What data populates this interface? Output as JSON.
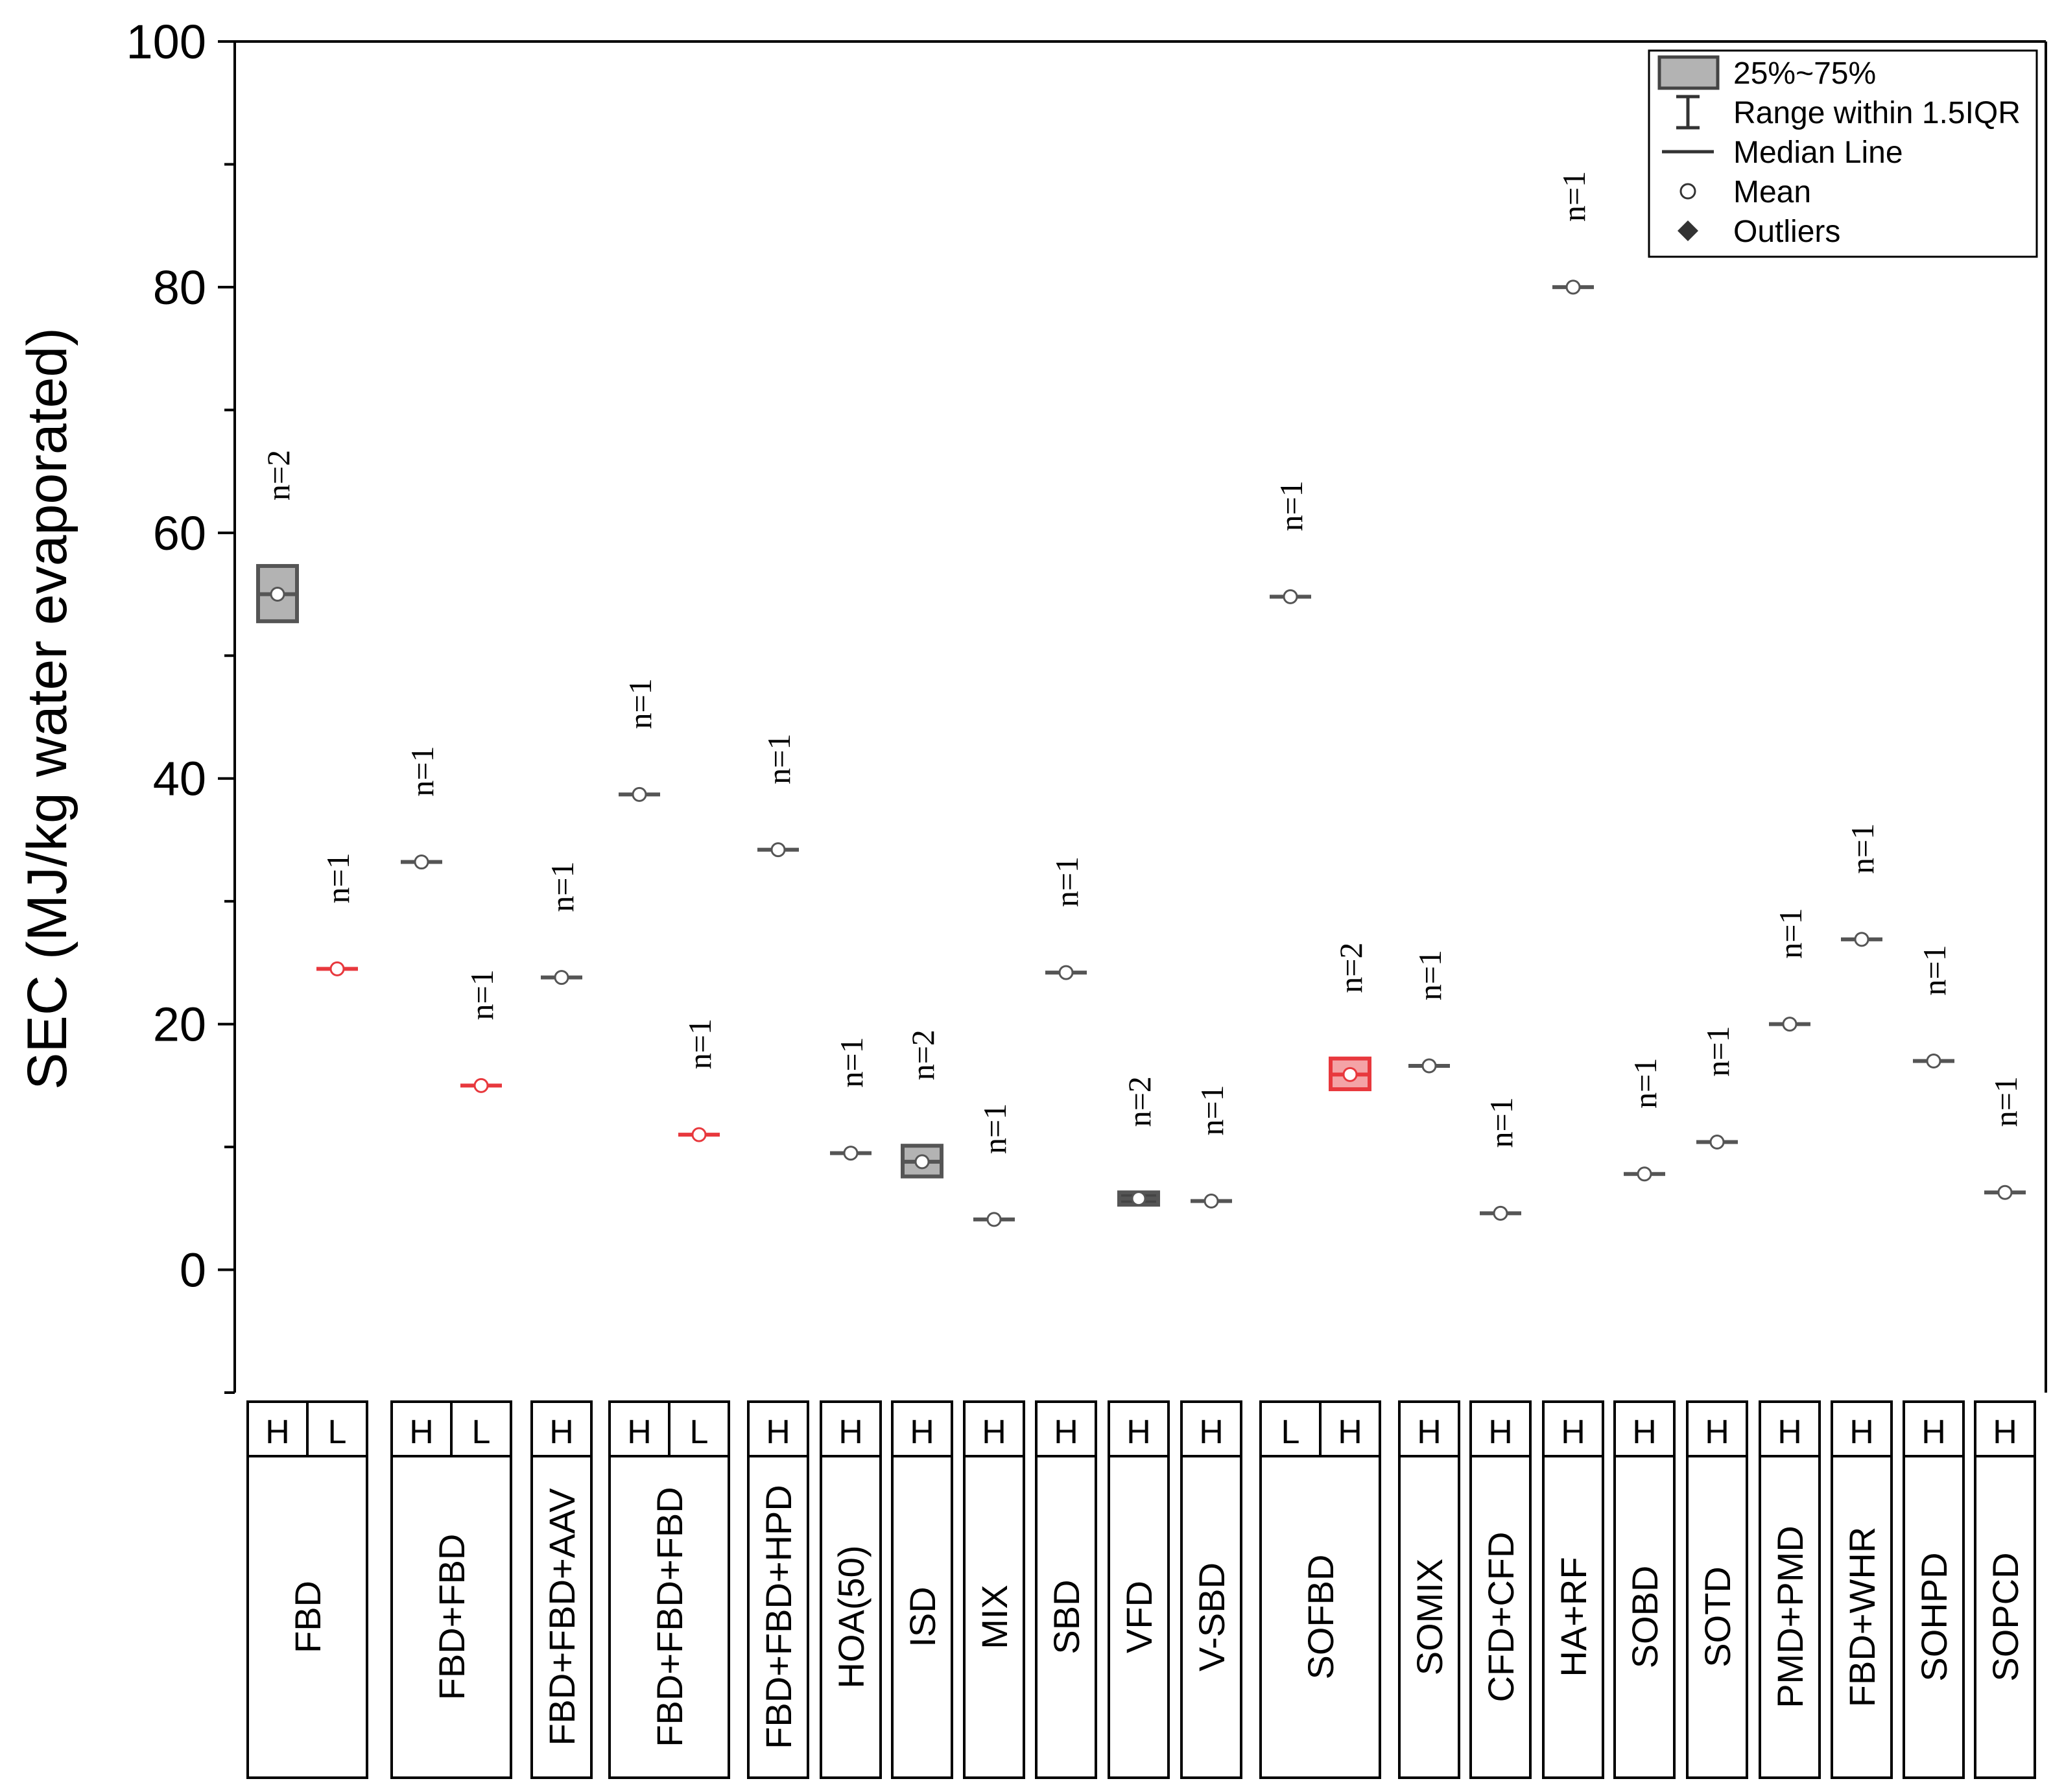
{
  "chart_data": {
    "type": "box",
    "ylabel": "SEC (MJ/kg water evaporated)",
    "ylim": [
      -10,
      100
    ],
    "yticks": [
      0,
      20,
      40,
      60,
      80,
      100
    ],
    "colors": {
      "H": "#555555",
      "L": "#e8383d",
      "H_fill": "#b3b3b3",
      "L_fill": "#f4a3a6"
    },
    "legend": {
      "position": "top-right",
      "items": [
        {
          "symbol": "box",
          "label": "25%~75%"
        },
        {
          "symbol": "whisker",
          "label": "Range within 1.5IQR"
        },
        {
          "symbol": "line",
          "label": "Median Line"
        },
        {
          "symbol": "circle",
          "label": "Mean"
        },
        {
          "symbol": "diamond",
          "label": "Outliers"
        }
      ]
    },
    "groups": [
      {
        "name": "FBD",
        "series": [
          {
            "level": "H",
            "n_label": "n=2",
            "median": 55,
            "mean": 55,
            "q1": 52.8,
            "q3": 57.3
          },
          {
            "level": "L",
            "n_label": "n=1",
            "median": 24.5,
            "mean": 24.5,
            "q1": 24.5,
            "q3": 24.5
          }
        ]
      },
      {
        "name": "FBD+FBD",
        "series": [
          {
            "level": "H",
            "n_label": "n=1",
            "median": 33.2,
            "mean": 33.2,
            "q1": 33.2,
            "q3": 33.2
          },
          {
            "level": "L",
            "n_label": "n=1",
            "median": 15,
            "mean": 15,
            "q1": 15,
            "q3": 15
          }
        ]
      },
      {
        "name": "FBD+FBD+AAV",
        "series": [
          {
            "level": "H",
            "n_label": "n=1",
            "median": 23.8,
            "mean": 23.8,
            "q1": 23.8,
            "q3": 23.8
          }
        ]
      },
      {
        "name": "FBD+FBD+FBD",
        "series": [
          {
            "level": "H",
            "n_label": "n=1",
            "median": 38.7,
            "mean": 38.7,
            "q1": 38.7,
            "q3": 38.7
          },
          {
            "level": "L",
            "n_label": "n=1",
            "median": 11,
            "mean": 11,
            "q1": 11,
            "q3": 11
          }
        ]
      },
      {
        "name": "FBD+FBD+HPD",
        "series": [
          {
            "level": "H",
            "n_label": "n=1",
            "median": 34.2,
            "mean": 34.2,
            "q1": 34.2,
            "q3": 34.2
          }
        ]
      },
      {
        "name": "HOA(50)",
        "series": [
          {
            "level": "H",
            "n_label": "n=1",
            "median": 9.5,
            "mean": 9.5,
            "q1": 9.5,
            "q3": 9.5
          }
        ]
      },
      {
        "name": "ISD",
        "series": [
          {
            "level": "H",
            "n_label": "n=2",
            "median": 8.8,
            "mean": 8.8,
            "q1": 7.6,
            "q3": 10.1
          }
        ]
      },
      {
        "name": "MIX",
        "series": [
          {
            "level": "H",
            "n_label": "n=1",
            "median": 4.1,
            "mean": 4.1,
            "q1": 4.1,
            "q3": 4.1
          }
        ]
      },
      {
        "name": "SBD",
        "series": [
          {
            "level": "H",
            "n_label": "n=1",
            "median": 24.2,
            "mean": 24.2,
            "q1": 24.2,
            "q3": 24.2
          }
        ]
      },
      {
        "name": "VFD",
        "series": [
          {
            "level": "H",
            "n_label": "n=2",
            "median": 5.8,
            "mean": 5.8,
            "q1": 5.3,
            "q3": 6.3
          }
        ]
      },
      {
        "name": "V-SBD",
        "series": [
          {
            "level": "H",
            "n_label": "n=1",
            "median": 5.6,
            "mean": 5.6,
            "q1": 5.6,
            "q3": 5.6
          }
        ]
      },
      {
        "name": "SOFBD",
        "series": [
          {
            "level": "L",
            "n_label": "n=1",
            "median": 54.8,
            "mean": 54.8,
            "q1": 54.8,
            "q3": 54.8,
            "color": "H"
          },
          {
            "level": "H",
            "n_label": "n=2",
            "median": 15.9,
            "mean": 15.9,
            "q1": 14.7,
            "q3": 17.2,
            "color": "L"
          }
        ]
      },
      {
        "name": "SOMIX",
        "series": [
          {
            "level": "H",
            "n_label": "n=1",
            "median": 16.6,
            "mean": 16.6,
            "q1": 16.6,
            "q3": 16.6
          }
        ]
      },
      {
        "name": "CFD+CFD",
        "series": [
          {
            "level": "H",
            "n_label": "n=1",
            "median": 4.6,
            "mean": 4.6,
            "q1": 4.6,
            "q3": 4.6
          }
        ]
      },
      {
        "name": "HA+RF",
        "series": [
          {
            "level": "H",
            "n_label": "n=1",
            "median": 80,
            "mean": 80,
            "q1": 80,
            "q3": 80
          }
        ]
      },
      {
        "name": "SOBD",
        "series": [
          {
            "level": "H",
            "n_label": "n=1",
            "median": 7.8,
            "mean": 7.8,
            "q1": 7.8,
            "q3": 7.8
          }
        ]
      },
      {
        "name": "SOTD",
        "series": [
          {
            "level": "H",
            "n_label": "n=1",
            "median": 10.4,
            "mean": 10.4,
            "q1": 10.4,
            "q3": 10.4
          }
        ]
      },
      {
        "name": "PMD+PMD",
        "series": [
          {
            "level": "H",
            "n_label": "n=1",
            "median": 20,
            "mean": 20,
            "q1": 20,
            "q3": 20
          }
        ]
      },
      {
        "name": "FBD+WHR",
        "series": [
          {
            "level": "H",
            "n_label": "n=1",
            "median": 26.9,
            "mean": 26.9,
            "q1": 26.9,
            "q3": 26.9
          }
        ]
      },
      {
        "name": "SOHPD",
        "series": [
          {
            "level": "H",
            "n_label": "n=1",
            "median": 17,
            "mean": 17,
            "q1": 17,
            "q3": 17
          }
        ]
      },
      {
        "name": "SOPCD",
        "series": [
          {
            "level": "H",
            "n_label": "n=1",
            "median": 6.3,
            "mean": 6.3,
            "q1": 6.3,
            "q3": 6.3
          }
        ]
      }
    ]
  }
}
